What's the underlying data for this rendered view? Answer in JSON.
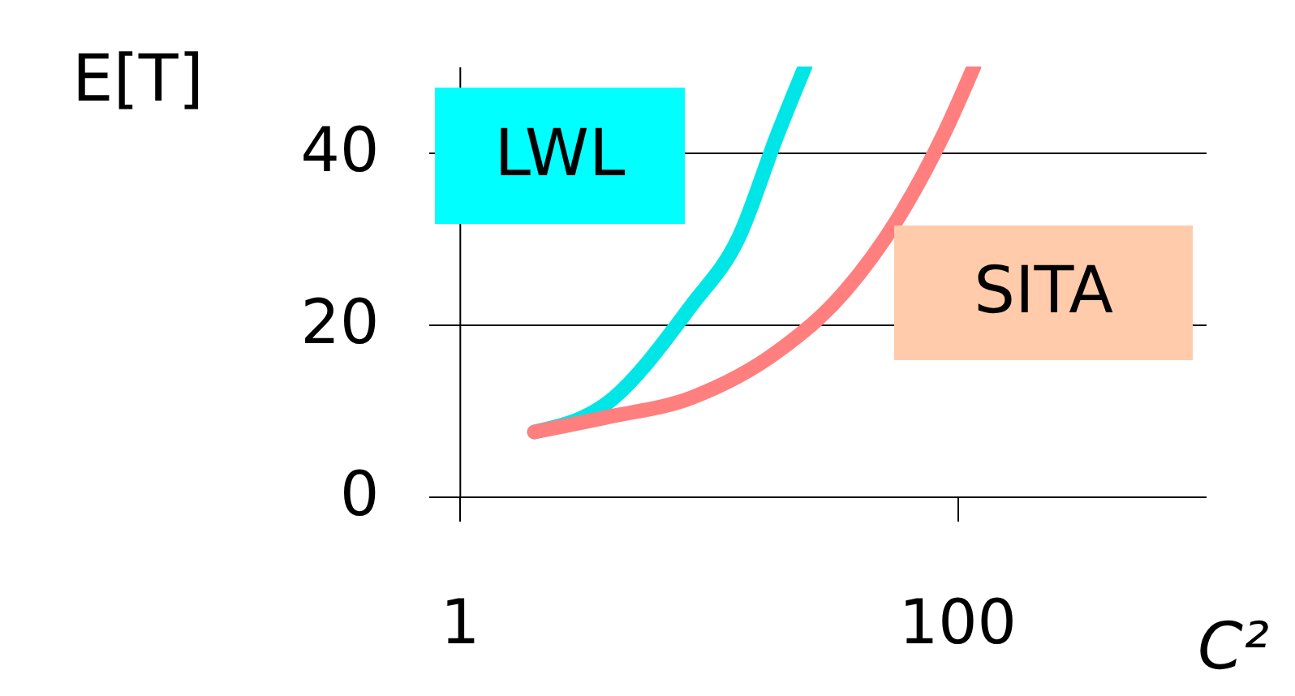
{
  "chart_data": {
    "type": "line",
    "xlabel": "C²",
    "ylabel": "E[T]",
    "log": "x",
    "grid": "y",
    "legend": false,
    "marker": "none",
    "line_style": "solid",
    "xlim": [
      0.75,
      1000
    ],
    "xticks": [
      1,
      100
    ],
    "ylim": [
      0,
      50
    ],
    "yticks": [
      0,
      20,
      40
    ],
    "series": [
      {
        "name": "LWL",
        "color": "#00e5e5",
        "x": [
          2,
          3.9,
          8.6,
          13.2,
          19.1,
          24.5
        ],
        "values": [
          7.5,
          10.8,
          22.3,
          30,
          42.3,
          50
        ]
      },
      {
        "name": "SITA",
        "color": "#ff7f7f",
        "x": [
          2,
          3.9,
          8.6,
          19.1,
          35.3,
          57.8,
          89,
          117
        ],
        "values": [
          7.5,
          9.2,
          11.5,
          16.9,
          23.8,
          32.3,
          42.3,
          50
        ]
      }
    ]
  }
}
